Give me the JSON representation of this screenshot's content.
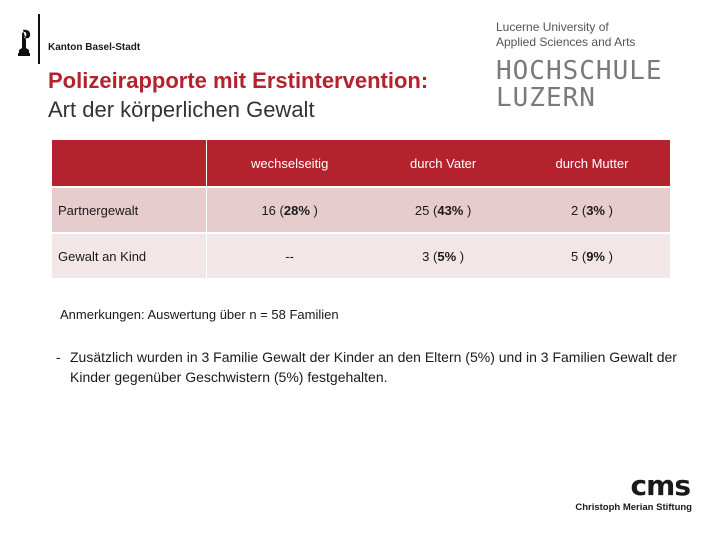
{
  "header": {
    "canton": "Kanton Basel-Stadt",
    "title_line1": "Polizeirapporte mit Erstintervention:",
    "title_line2": "Art der körperlichen Gewalt"
  },
  "hslu": {
    "line1": "Lucerne University of",
    "line2": "Applied Sciences and Arts",
    "word1": "HOCHSCHULE",
    "word2": "LUZERN"
  },
  "table": {
    "columns": [
      "",
      "wechselseitig",
      "durch Vater",
      "durch Mutter"
    ],
    "rows": [
      {
        "label": "Partnergewalt",
        "cells": [
          {
            "count": "16",
            "pct": "28%"
          },
          {
            "count": "25",
            "pct": "43%"
          },
          {
            "count": "2",
            "pct": "3%"
          }
        ]
      },
      {
        "label": "Gewalt an Kind",
        "cells": [
          {
            "text": "--"
          },
          {
            "count": "3",
            "pct": "5%"
          },
          {
            "count": "5",
            "pct": "9%"
          }
        ]
      }
    ]
  },
  "notes": {
    "annotation": "Anmerkungen: Auswertung über n = 58 Familien",
    "bullet_dash": "-",
    "bullet_text": "Zusätzlich wurden in 3 Familie Gewalt der Kinder an den Eltern (5%) und in 3 Familien Gewalt der Kinder gegenüber Geschwistern (5%) festgehalten."
  },
  "cms": {
    "mark": "cms",
    "name": "Christoph Merian Stiftung"
  }
}
